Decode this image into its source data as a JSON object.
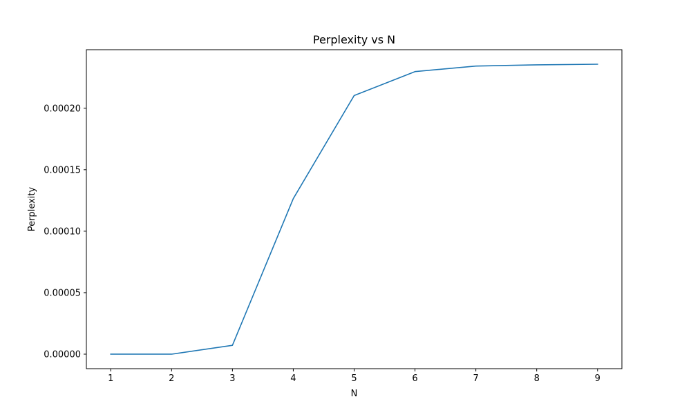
{
  "chart_data": {
    "type": "line",
    "title": "Perplexity vs N",
    "xlabel": "N",
    "ylabel": "Perplexity",
    "x": [
      1,
      2,
      3,
      4,
      5,
      6,
      7,
      8,
      9
    ],
    "series": [
      {
        "values": [
          0.0,
          0.0,
          7.2e-06,
          0.0001265,
          0.0002103,
          0.0002298,
          0.0002343,
          0.0002353,
          0.0002358
        ]
      }
    ],
    "xticks": [
      1,
      2,
      3,
      4,
      5,
      6,
      7,
      8,
      9
    ],
    "yticks": [
      0.0,
      5e-05,
      0.0001,
      0.00015,
      0.0002
    ],
    "ytick_labels": [
      "0.00000",
      "0.00005",
      "0.00010",
      "0.00015",
      "0.00020"
    ],
    "xlim": [
      0.6,
      9.4
    ],
    "ylim": [
      -1.18e-05,
      0.0002476
    ],
    "grid": false,
    "line_color": "#1f77b4"
  }
}
